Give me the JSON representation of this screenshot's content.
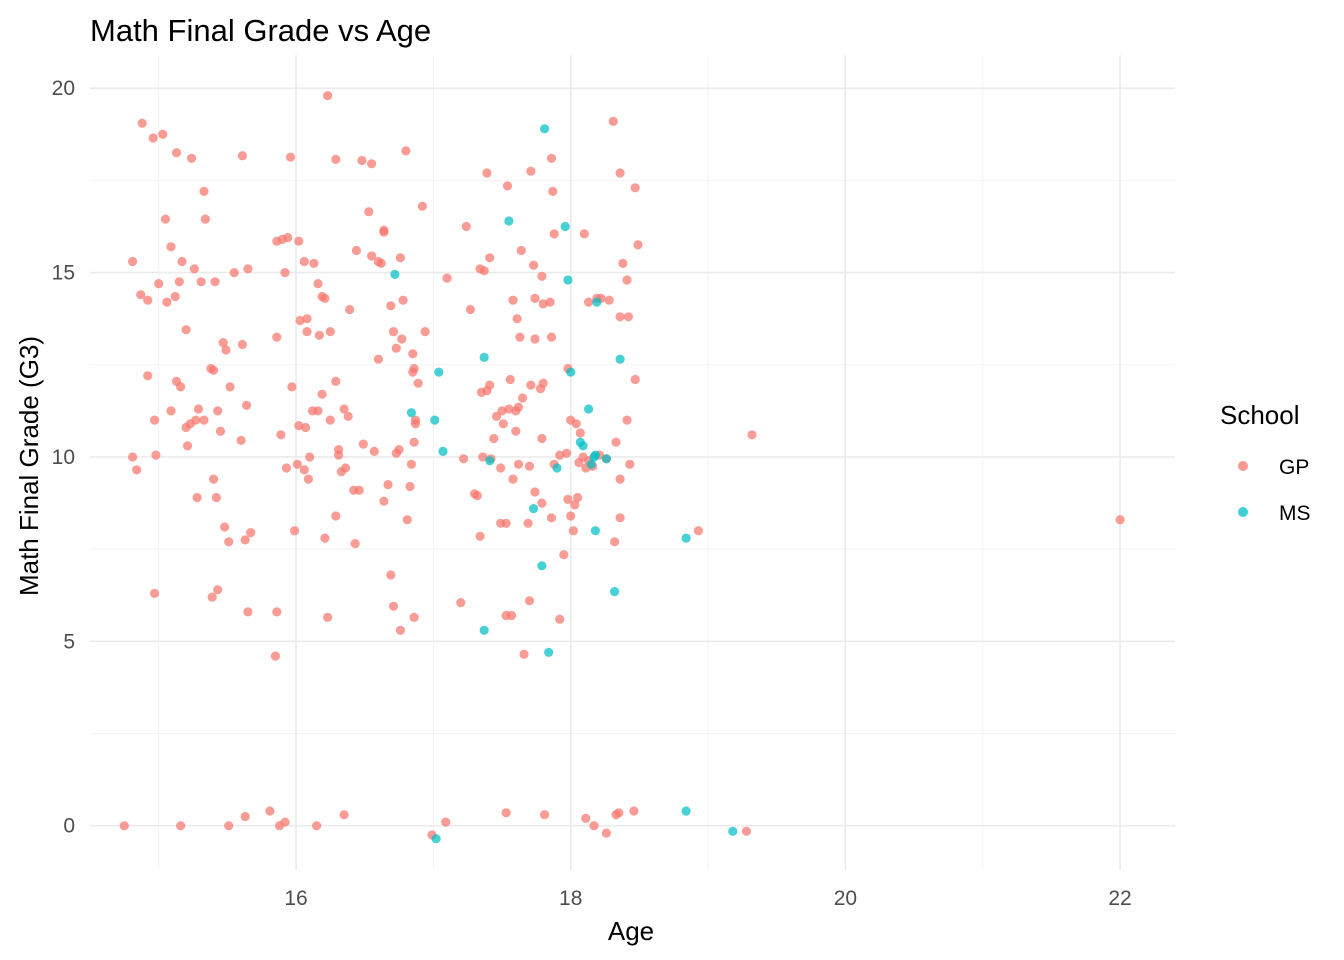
{
  "chart_data": {
    "type": "scatter",
    "title": "Math Final Grade vs Age",
    "xlabel": "Age",
    "ylabel": "Math Final Grade (G3)",
    "xlim": [
      14.5,
      22.4
    ],
    "ylim": [
      -1.2,
      20.9
    ],
    "x_ticks": [
      16,
      18,
      20,
      22
    ],
    "y_ticks": [
      0,
      5,
      10,
      15,
      20
    ],
    "x_tick_labels": [
      "16",
      "18",
      "20",
      "22"
    ],
    "y_tick_labels": [
      "0",
      "5",
      "10",
      "15",
      "20"
    ],
    "grid": true,
    "legend": {
      "title": "School",
      "position": "right"
    },
    "series": [
      {
        "name": "GP",
        "color": "#F8766D",
        "points": [
          [
            14.88,
            19.05
          ],
          [
            14.96,
            18.65
          ],
          [
            15.03,
            18.75
          ],
          [
            15.13,
            18.25
          ],
          [
            15.24,
            18.1
          ],
          [
            15.61,
            18.17
          ],
          [
            15.96,
            18.13
          ],
          [
            16.29,
            18.07
          ],
          [
            16.48,
            18.04
          ],
          [
            16.8,
            18.3
          ],
          [
            16.23,
            19.8
          ],
          [
            14.81,
            15.3
          ],
          [
            14.87,
            14.4
          ],
          [
            14.92,
            14.25
          ],
          [
            15.0,
            14.7
          ],
          [
            15.05,
            16.45
          ],
          [
            15.06,
            14.2
          ],
          [
            15.09,
            15.7
          ],
          [
            15.12,
            14.35
          ],
          [
            15.15,
            14.75
          ],
          [
            15.17,
            15.3
          ],
          [
            15.2,
            13.45
          ],
          [
            15.26,
            15.1
          ],
          [
            15.31,
            14.75
          ],
          [
            15.33,
            17.2
          ],
          [
            15.34,
            16.45
          ],
          [
            15.41,
            14.75
          ],
          [
            15.47,
            13.1
          ],
          [
            15.55,
            15.0
          ],
          [
            15.65,
            15.1
          ],
          [
            15.61,
            13.05
          ],
          [
            14.92,
            12.2
          ],
          [
            14.97,
            11.0
          ],
          [
            15.09,
            11.25
          ],
          [
            15.13,
            12.05
          ],
          [
            15.16,
            11.9
          ],
          [
            15.2,
            10.8
          ],
          [
            15.23,
            10.9
          ],
          [
            15.27,
            11.0
          ],
          [
            15.29,
            11.3
          ],
          [
            15.33,
            11.0
          ],
          [
            15.38,
            12.4
          ],
          [
            15.4,
            12.35
          ],
          [
            15.43,
            11.25
          ],
          [
            15.45,
            10.7
          ],
          [
            15.49,
            12.9
          ],
          [
            15.52,
            11.9
          ],
          [
            15.6,
            10.45
          ],
          [
            15.64,
            11.4
          ],
          [
            14.81,
            10.0
          ],
          [
            14.84,
            9.65
          ],
          [
            14.98,
            10.05
          ],
          [
            15.21,
            10.3
          ],
          [
            15.28,
            8.9
          ],
          [
            15.4,
            9.4
          ],
          [
            15.42,
            8.9
          ],
          [
            15.48,
            8.1
          ],
          [
            15.51,
            7.7
          ],
          [
            15.63,
            7.75
          ],
          [
            15.67,
            7.95
          ],
          [
            15.65,
            5.8
          ],
          [
            14.97,
            6.3
          ],
          [
            15.39,
            6.2
          ],
          [
            15.43,
            6.4
          ],
          [
            15.86,
            15.85
          ],
          [
            15.9,
            15.9
          ],
          [
            15.94,
            15.95
          ],
          [
            16.02,
            15.85
          ],
          [
            16.06,
            15.3
          ],
          [
            16.13,
            15.25
          ],
          [
            16.03,
            13.7
          ],
          [
            16.08,
            13.75
          ],
          [
            16.16,
            14.7
          ],
          [
            16.19,
            14.35
          ],
          [
            15.92,
            15.0
          ],
          [
            16.08,
            13.4
          ],
          [
            15.86,
            13.25
          ],
          [
            16.17,
            13.3
          ],
          [
            15.97,
            11.9
          ],
          [
            16.02,
            10.85
          ],
          [
            16.07,
            10.8
          ],
          [
            16.1,
            10.0
          ],
          [
            15.89,
            10.6
          ],
          [
            15.93,
            9.7
          ],
          [
            16.01,
            9.8
          ],
          [
            16.06,
            9.65
          ],
          [
            16.09,
            9.4
          ],
          [
            16.12,
            11.25
          ],
          [
            16.16,
            11.25
          ],
          [
            16.19,
            11.7
          ],
          [
            16.25,
            11.0
          ],
          [
            16.31,
            10.2
          ],
          [
            16.33,
            9.6
          ],
          [
            16.36,
            9.7
          ],
          [
            16.42,
            9.1
          ],
          [
            16.49,
            10.35
          ],
          [
            16.29,
            12.05
          ],
          [
            16.35,
            11.3
          ],
          [
            16.38,
            11.1
          ],
          [
            16.25,
            13.4
          ],
          [
            16.21,
            14.3
          ],
          [
            16.39,
            14.0
          ],
          [
            16.44,
            15.6
          ],
          [
            16.55,
            15.45
          ],
          [
            16.6,
            15.3
          ],
          [
            16.62,
            15.25
          ],
          [
            16.64,
            16.1
          ],
          [
            16.64,
            16.15
          ],
          [
            16.76,
            15.4
          ],
          [
            16.6,
            12.65
          ],
          [
            16.69,
            14.1
          ],
          [
            16.71,
            13.4
          ],
          [
            16.73,
            12.95
          ],
          [
            16.77,
            13.2
          ],
          [
            16.78,
            14.25
          ],
          [
            16.85,
            12.8
          ],
          [
            16.86,
            12.4
          ],
          [
            16.87,
            11.0
          ],
          [
            16.87,
            10.9
          ],
          [
            16.86,
            10.4
          ],
          [
            16.84,
            9.8
          ],
          [
            16.85,
            12.3
          ],
          [
            16.89,
            12.0
          ],
          [
            16.94,
            13.4
          ],
          [
            16.92,
            16.8
          ],
          [
            16.53,
            16.65
          ],
          [
            16.55,
            17.95
          ],
          [
            16.31,
            10.05
          ],
          [
            16.46,
            9.1
          ],
          [
            16.57,
            10.15
          ],
          [
            16.64,
            8.8
          ],
          [
            16.67,
            9.25
          ],
          [
            16.73,
            10.1
          ],
          [
            16.75,
            10.2
          ],
          [
            16.83,
            9.2
          ],
          [
            16.81,
            8.3
          ],
          [
            16.29,
            8.4
          ],
          [
            16.43,
            7.65
          ],
          [
            16.21,
            7.8
          ],
          [
            15.99,
            8.0
          ],
          [
            16.23,
            5.65
          ],
          [
            16.69,
            6.8
          ],
          [
            16.71,
            5.95
          ],
          [
            16.76,
            5.3
          ],
          [
            16.86,
            5.65
          ],
          [
            15.85,
            4.6
          ],
          [
            15.86,
            5.8
          ],
          [
            17.1,
            14.85
          ],
          [
            17.24,
            16.25
          ],
          [
            17.34,
            15.1
          ],
          [
            17.37,
            15.05
          ],
          [
            17.39,
            17.7
          ],
          [
            17.41,
            15.4
          ],
          [
            17.54,
            17.35
          ],
          [
            17.64,
            15.6
          ],
          [
            17.74,
            14.3
          ],
          [
            17.71,
            17.75
          ],
          [
            17.88,
            16.05
          ],
          [
            17.86,
            18.1
          ],
          [
            17.73,
            15.2
          ],
          [
            17.79,
            14.9
          ],
          [
            17.8,
            14.15
          ],
          [
            17.85,
            14.2
          ],
          [
            17.63,
            13.25
          ],
          [
            17.27,
            14.0
          ],
          [
            17.35,
            11.75
          ],
          [
            17.39,
            11.8
          ],
          [
            17.41,
            11.95
          ],
          [
            17.46,
            11.1
          ],
          [
            17.5,
            11.25
          ],
          [
            17.55,
            11.3
          ],
          [
            17.6,
            11.25
          ],
          [
            17.44,
            10.5
          ],
          [
            17.51,
            10.9
          ],
          [
            17.56,
            12.1
          ],
          [
            17.62,
            11.35
          ],
          [
            17.65,
            11.6
          ],
          [
            17.71,
            11.95
          ],
          [
            17.78,
            11.85
          ],
          [
            17.79,
            10.5
          ],
          [
            17.86,
            13.25
          ],
          [
            17.74,
            13.2
          ],
          [
            17.8,
            12.0
          ],
          [
            17.6,
            10.7
          ],
          [
            17.49,
            9.7
          ],
          [
            17.42,
            9.95
          ],
          [
            17.36,
            10.0
          ],
          [
            17.22,
            9.95
          ],
          [
            17.3,
            9.0
          ],
          [
            17.32,
            8.95
          ],
          [
            17.58,
            9.4
          ],
          [
            17.62,
            9.8
          ],
          [
            17.7,
            9.75
          ],
          [
            17.74,
            9.05
          ],
          [
            17.79,
            8.75
          ],
          [
            17.88,
            9.8
          ],
          [
            17.92,
            10.05
          ],
          [
            17.98,
            8.85
          ],
          [
            17.97,
            10.1
          ],
          [
            17.69,
            8.2
          ],
          [
            17.53,
            8.2
          ],
          [
            17.49,
            8.2
          ],
          [
            17.86,
            8.35
          ],
          [
            17.34,
            7.85
          ],
          [
            17.95,
            7.35
          ],
          [
            17.92,
            5.6
          ],
          [
            17.57,
            5.7
          ],
          [
            17.2,
            6.05
          ],
          [
            17.53,
            5.7
          ],
          [
            17.66,
            4.65
          ],
          [
            17.7,
            6.1
          ],
          [
            17.58,
            14.25
          ],
          [
            17.61,
            13.75
          ],
          [
            17.87,
            17.2
          ],
          [
            18.1,
            16.05
          ],
          [
            18.13,
            14.2
          ],
          [
            18.19,
            14.3
          ],
          [
            18.22,
            14.3
          ],
          [
            18.28,
            14.25
          ],
          [
            18.36,
            13.8
          ],
          [
            18.31,
            19.1
          ],
          [
            18.36,
            17.7
          ],
          [
            18.47,
            17.3
          ],
          [
            18.49,
            15.75
          ],
          [
            18.38,
            15.25
          ],
          [
            18.41,
            14.8
          ],
          [
            17.98,
            12.4
          ],
          [
            18.0,
            11.0
          ],
          [
            18.04,
            10.9
          ],
          [
            18.07,
            10.65
          ],
          [
            18.09,
            10.0
          ],
          [
            18.13,
            9.9
          ],
          [
            18.06,
            9.85
          ],
          [
            18.11,
            9.7
          ],
          [
            18.16,
            9.75
          ],
          [
            18.05,
            8.9
          ],
          [
            18.03,
            8.7
          ],
          [
            18.0,
            8.4
          ],
          [
            18.02,
            8.0
          ],
          [
            18.21,
            10.05
          ],
          [
            18.26,
            9.95
          ],
          [
            18.36,
            9.4
          ],
          [
            18.36,
            8.35
          ],
          [
            18.33,
            10.4
          ],
          [
            18.41,
            11.0
          ],
          [
            18.43,
            9.8
          ],
          [
            18.47,
            12.1
          ],
          [
            18.32,
            7.7
          ],
          [
            18.42,
            13.8
          ],
          [
            18.93,
            8.0
          ],
          [
            19.32,
            10.6
          ],
          [
            22.0,
            8.3
          ],
          [
            14.75,
            0.0
          ],
          [
            15.16,
            0.0
          ],
          [
            15.51,
            0.0
          ],
          [
            15.63,
            0.25
          ],
          [
            15.81,
            0.4
          ],
          [
            15.88,
            0.0
          ],
          [
            15.92,
            0.1
          ],
          [
            16.15,
            0.0
          ],
          [
            16.35,
            0.3
          ],
          [
            16.99,
            -0.25
          ],
          [
            17.09,
            0.1
          ],
          [
            17.53,
            0.35
          ],
          [
            17.81,
            0.3
          ],
          [
            18.11,
            0.2
          ],
          [
            18.17,
            0.0
          ],
          [
            18.26,
            -0.2
          ],
          [
            18.33,
            0.3
          ],
          [
            18.35,
            0.35
          ],
          [
            18.46,
            0.4
          ],
          [
            19.28,
            -0.15
          ]
        ]
      },
      {
        "name": "MS",
        "color": "#00BFC4",
        "points": [
          [
            17.81,
            18.9
          ],
          [
            17.96,
            16.25
          ],
          [
            17.55,
            16.4
          ],
          [
            17.98,
            14.8
          ],
          [
            18.19,
            14.2
          ],
          [
            16.72,
            14.95
          ],
          [
            17.04,
            12.3
          ],
          [
            17.37,
            12.7
          ],
          [
            16.84,
            11.2
          ],
          [
            17.01,
            11.0
          ],
          [
            17.07,
            10.15
          ],
          [
            17.41,
            9.9
          ],
          [
            17.9,
            9.7
          ],
          [
            17.73,
            8.6
          ],
          [
            17.79,
            7.05
          ],
          [
            17.37,
            5.3
          ],
          [
            17.84,
            4.7
          ],
          [
            18.0,
            12.3
          ],
          [
            18.07,
            10.4
          ],
          [
            18.09,
            10.3
          ],
          [
            18.13,
            11.3
          ],
          [
            18.17,
            10.0
          ],
          [
            18.18,
            10.05
          ],
          [
            18.15,
            9.8
          ],
          [
            18.26,
            9.95
          ],
          [
            18.36,
            12.65
          ],
          [
            18.18,
            8.0
          ],
          [
            18.32,
            6.35
          ],
          [
            18.84,
            7.8
          ],
          [
            18.84,
            0.4
          ],
          [
            17.02,
            -0.35
          ],
          [
            19.18,
            -0.15
          ]
        ]
      }
    ]
  }
}
